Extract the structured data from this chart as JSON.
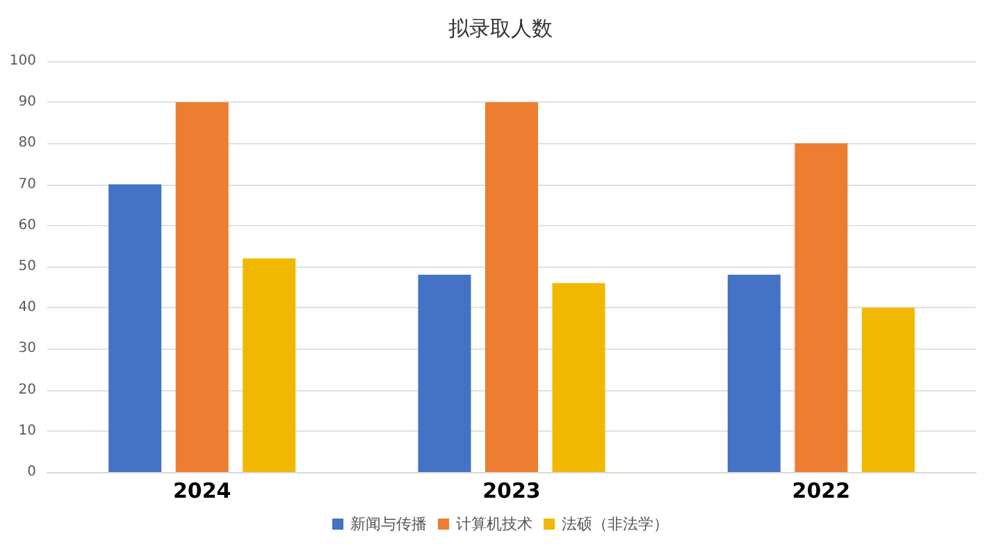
{
  "chart_data": {
    "type": "bar",
    "title": "拟录取人数",
    "categories": [
      "2024",
      "2023",
      "2022"
    ],
    "series": [
      {
        "name": "新闻与传播",
        "color": "#4472c4",
        "values": [
          70,
          48,
          48
        ]
      },
      {
        "name": "计算机技术",
        "color": "#ed7d31",
        "values": [
          90,
          90,
          80
        ]
      },
      {
        "name": "法硕（非法学）",
        "color": "#f0b800",
        "values": [
          52,
          46,
          40
        ]
      }
    ],
    "ylim": [
      0,
      100
    ],
    "yticks": [
      0,
      10,
      20,
      30,
      40,
      50,
      60,
      70,
      80,
      90,
      100
    ],
    "grid": "y",
    "legend": "bottom"
  }
}
